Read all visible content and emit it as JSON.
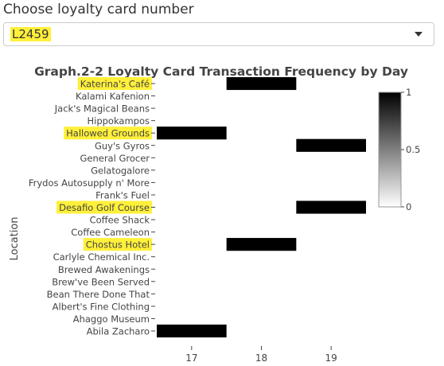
{
  "selector": {
    "label": "Choose loyalty card number",
    "selected_value": "L2459"
  },
  "chart_data": {
    "type": "heatmap",
    "title": "Graph.2-2 Loyalty Card Transaction Frequency by Day",
    "xlabel": "",
    "ylabel": "Location",
    "x_ticks": [
      17,
      18,
      19
    ],
    "x_range": [
      16.5,
      19.5
    ],
    "y_categories": [
      "Katerina's Café",
      "Kalami Kafenion",
      "Jack's Magical Beans",
      "Hippokampos",
      "Hallowed Grounds",
      "Guy's Gyros",
      "General Grocer",
      "Gelatogalore",
      "Frydos Autosupply n' More",
      "Frank's Fuel",
      "Desafio Golf Course",
      "Coffee Shack",
      "Coffee Cameleon",
      "Chostus Hotel",
      "Carlyle Chemical Inc.",
      "Brewed Awakenings",
      "Brew've Been Served",
      "Bean There Done That",
      "Albert's Fine Clothing",
      "Ahaggo Museum",
      "Abila Zacharo"
    ],
    "highlighted_categories": [
      "Katerina's Café",
      "Hallowed Grounds",
      "Desafio Golf Course",
      "Chostus Hotel"
    ],
    "cells": [
      {
        "location": "Katerina's Café",
        "day": 18,
        "value": 1
      },
      {
        "location": "Hallowed Grounds",
        "day": 17,
        "value": 1
      },
      {
        "location": "Guy's Gyros",
        "day": 19,
        "value": 1
      },
      {
        "location": "Desafio Golf Course",
        "day": 19,
        "value": 1
      },
      {
        "location": "Chostus Hotel",
        "day": 18,
        "value": 1
      },
      {
        "location": "Abila Zacharo",
        "day": 17,
        "value": 1
      }
    ],
    "colorbar": {
      "range": [
        0,
        1
      ],
      "ticks": [
        "0",
        "0.5",
        "1"
      ],
      "low_color": "#ffffff",
      "high_color": "#000000"
    },
    "highlight_color": "#fff03a",
    "grid": false
  }
}
